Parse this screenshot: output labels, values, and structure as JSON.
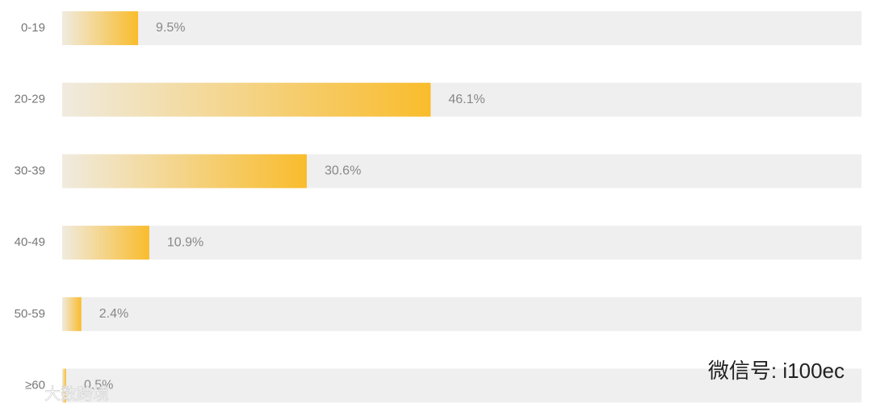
{
  "chart_data": {
    "type": "hbar",
    "categories": [
      "0-19",
      "20-29",
      "30-39",
      "40-49",
      "50-59",
      "≥60"
    ],
    "values": [
      9.5,
      46.1,
      30.6,
      10.9,
      2.4,
      0.5
    ],
    "value_labels": [
      "9.5%",
      "46.1%",
      "30.6%",
      "10.9%",
      "2.4%",
      "0.5%"
    ],
    "color": "#f9bc2c",
    "xlim": [
      0,
      100
    ]
  },
  "watermarks": [
    "微信号: i100ec",
    "大数跨境"
  ]
}
